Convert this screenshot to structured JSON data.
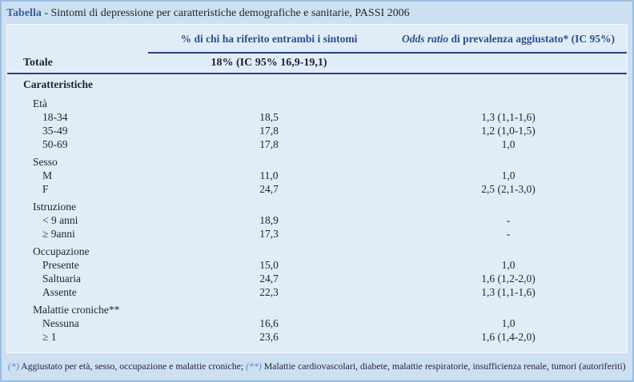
{
  "title": {
    "label": "Tabella",
    "text": " - Sintomi di depressione per caratteristiche demografiche e sanitarie, PASSI 2006"
  },
  "table": {
    "col2_header": "% di chi ha riferito entrambi i sintomi",
    "col3_header_italic": "Odds ratio",
    "col3_header_rest": " di prevalenza aggiustato* (IC 95%)",
    "totale_label": "Totale",
    "totale_value": "18% (IC 95% 16,9-19,1)",
    "rows": [
      {
        "label": "Caratteristiche",
        "level": "section",
        "pct": "",
        "or": ""
      },
      {
        "label": "Età",
        "level": "group",
        "pct": "",
        "or": ""
      },
      {
        "label": "18-34",
        "level": "item",
        "pct": "18,5",
        "or": "1,3 (1,1-1,6)"
      },
      {
        "label": "35-49",
        "level": "item",
        "pct": "17,8",
        "or": "1,2 (1,0-1,5)"
      },
      {
        "label": "50-69",
        "level": "item",
        "pct": "17,8",
        "or": "1,0"
      },
      {
        "label": "Sesso",
        "level": "group",
        "pct": "",
        "or": ""
      },
      {
        "label": "M",
        "level": "item",
        "pct": "11,0",
        "or": "1,0"
      },
      {
        "label": "F",
        "level": "item",
        "pct": "24,7",
        "or": "2,5 (2,1-3,0)"
      },
      {
        "label": "Istruzione",
        "level": "group",
        "pct": "",
        "or": ""
      },
      {
        "label": "< 9 anni",
        "level": "item",
        "pct": "18,9",
        "or": "-"
      },
      {
        "label": "≥ 9anni",
        "level": "item",
        "pct": "17,3",
        "or": "-"
      },
      {
        "label": "Occupazione",
        "level": "group",
        "pct": "",
        "or": ""
      },
      {
        "label": "Presente",
        "level": "item",
        "pct": "15,0",
        "or": "1,0"
      },
      {
        "label": "Saltuaria",
        "level": "item",
        "pct": "24,7",
        "or": "1,6 (1,2-2,0)"
      },
      {
        "label": "Assente",
        "level": "item",
        "pct": "22,3",
        "or": "1,3 (1,1-1,6)"
      },
      {
        "label": "Malattie croniche**",
        "level": "group",
        "pct": "",
        "or": ""
      },
      {
        "label": "Nessuna",
        "level": "item",
        "pct": "16,6",
        "or": "1,0"
      },
      {
        "label": "≥ 1",
        "level": "item",
        "pct": "23,6",
        "or": "1,6 (1,4-2,0)"
      }
    ]
  },
  "footnote": {
    "marker1": "(*)",
    "text1": " Aggiustato per età, sesso, occupazione e malattie croniche; ",
    "marker2": "(**)",
    "text2": " Malattie cardiovascolari, diabete, malattie respiratorie, insufficienza renale, tumori (autoriferiti)"
  },
  "colors": {
    "outer_background": "#cde0f1",
    "panel_background": "#e0edf8",
    "frame_border": "#9abedf",
    "rule_navy": "#29447f",
    "header_text": "#2e4d8c",
    "title_accent": "#3c5f9f",
    "footnote_marker": "#5d87c6",
    "body_text": "#1e2331"
  }
}
